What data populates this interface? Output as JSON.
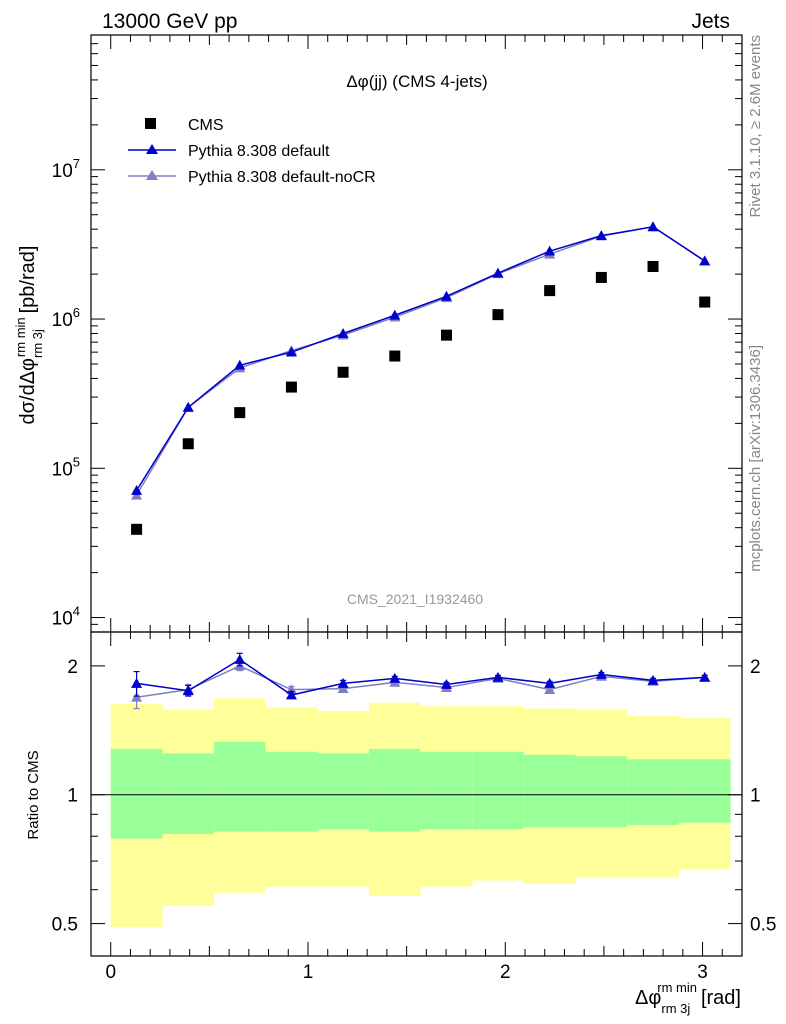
{
  "header": {
    "left": "13000 GeV pp",
    "right": "Jets"
  },
  "side_labels": {
    "rivet": "Rivet 3.1.10, ≥ 2.6M events",
    "mcplots": "mcplots.cern.ch [arXiv:1306.3436]"
  },
  "chart_data": [
    {
      "type": "scatter",
      "panel": "main",
      "title": "Δφ(jj) (CMS 4-jets)",
      "watermark": "CMS_2021_I1932460",
      "ylabel": "dσ/dΔφ rm 3j rm min [pb/rad]",
      "yscale": "log",
      "ylim": [
        8000,
        80000000
      ],
      "xlim": [
        -0.1,
        3.2
      ],
      "y_tick_labels": [
        "10^4",
        "10^5",
        "10^6",
        "10^7"
      ],
      "legend_position": "top-left",
      "x": [
        0.131,
        0.393,
        0.654,
        0.916,
        1.178,
        1.44,
        1.702,
        1.963,
        2.225,
        2.487,
        2.749,
        3.011
      ],
      "series": [
        {
          "name": "CMS",
          "color": "#000000",
          "marker": "square",
          "values": [
            39000,
            146000,
            236000,
            350000,
            440000,
            565000,
            780000,
            1070000,
            1550000,
            1900000,
            2250000,
            1300000
          ]
        },
        {
          "name": "Pythia 8.308 default",
          "color": "#0000cc",
          "marker": "triangle",
          "values": [
            71000,
            256000,
            490000,
            600000,
            800000,
            1060000,
            1420000,
            2030000,
            2850000,
            3620000,
            4150000,
            2450000
          ]
        },
        {
          "name": "Pythia 8.308 default-noCR",
          "color": "#8080c0",
          "marker": "triangle",
          "values": [
            66000,
            256000,
            470000,
            615000,
            780000,
            1030000,
            1390000,
            2010000,
            2720000,
            3600000,
            4150000,
            2450000
          ]
        }
      ]
    },
    {
      "type": "line",
      "panel": "ratio",
      "ylabel": "Ratio to CMS",
      "xlabel": "Δφ rm 3j rm min [rad]",
      "yscale": "log",
      "ylim": [
        0.42,
        2.4
      ],
      "xlim": [
        -0.1,
        3.2
      ],
      "y_tick_labels": [
        "0.5",
        "1",
        "2"
      ],
      "x_tick_labels": [
        "0",
        "1",
        "2",
        "3"
      ],
      "bands": {
        "bin_edges": [
          0,
          0.262,
          0.524,
          0.785,
          1.047,
          1.309,
          1.571,
          1.833,
          2.094,
          2.356,
          2.618,
          2.88,
          3.142
        ],
        "yellow_low": [
          0.49,
          0.55,
          0.59,
          0.61,
          0.61,
          0.58,
          0.61,
          0.63,
          0.62,
          0.64,
          0.64,
          0.67
        ],
        "yellow_high": [
          1.63,
          1.58,
          1.68,
          1.6,
          1.57,
          1.64,
          1.61,
          1.61,
          1.59,
          1.58,
          1.53,
          1.51
        ],
        "green_low": [
          0.79,
          0.81,
          0.82,
          0.82,
          0.83,
          0.82,
          0.83,
          0.83,
          0.84,
          0.84,
          0.85,
          0.86
        ],
        "green_high": [
          1.28,
          1.25,
          1.33,
          1.26,
          1.25,
          1.28,
          1.26,
          1.26,
          1.24,
          1.23,
          1.21,
          1.21
        ]
      },
      "series": [
        {
          "name": "Pythia 8.308 default",
          "color": "#0000cc",
          "values": [
            1.82,
            1.75,
            2.07,
            1.71,
            1.82,
            1.87,
            1.81,
            1.88,
            1.82,
            1.91,
            1.85,
            1.88
          ],
          "errors": [
            0.12,
            0.05,
            0.07,
            0.03,
            0.03,
            0.02,
            0.02,
            0.02,
            0.02,
            0.02,
            0.02,
            0.02
          ]
        },
        {
          "name": "Pythia 8.308 default-noCR",
          "color": "#8080c0",
          "values": [
            1.69,
            1.76,
            2.0,
            1.76,
            1.77,
            1.83,
            1.78,
            1.87,
            1.76,
            1.89,
            1.84,
            1.88
          ],
          "errors": [
            0.1,
            0.05,
            0.05,
            0.03,
            0.03,
            0.02,
            0.02,
            0.02,
            0.02,
            0.02,
            0.02,
            0.02
          ]
        }
      ]
    }
  ]
}
